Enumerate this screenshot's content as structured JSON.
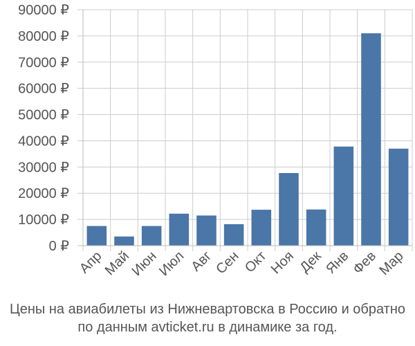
{
  "chart_data": {
    "type": "bar",
    "categories": [
      "Апр",
      "Май",
      "Июн",
      "Июл",
      "Авг",
      "Сен",
      "Окт",
      "Ноя",
      "Дек",
      "Янв",
      "Фев",
      "Мар"
    ],
    "values": [
      7500,
      3500,
      7500,
      12200,
      11500,
      8200,
      13700,
      27700,
      13800,
      37800,
      81000,
      37000
    ],
    "y_ticks": [
      "0 ₽",
      "10000 ₽",
      "20000 ₽",
      "30000 ₽",
      "40000 ₽",
      "50000 ₽",
      "60000 ₽",
      "70000 ₽",
      "80000 ₽",
      "90000 ₽"
    ],
    "ylim": [
      0,
      90000
    ],
    "grid": true,
    "bar_color": "#4a76a8",
    "grid_color": "#cccccc"
  },
  "caption": {
    "line1": "Цены на авиабилеты из Нижневартовска в Россию и обратно",
    "line2": "по данным avticket.ru в динамике за год."
  }
}
